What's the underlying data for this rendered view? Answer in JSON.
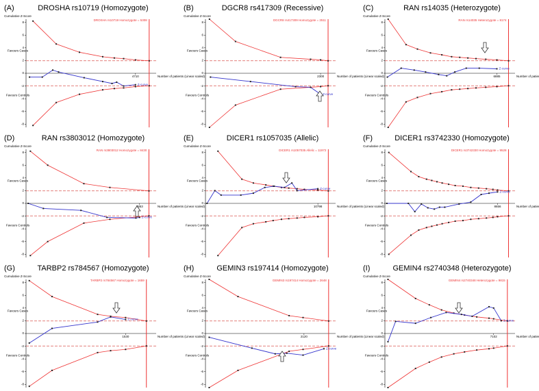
{
  "chart_data": [
    {
      "type": "line",
      "label": "(A)",
      "title": "DROSHA rs10719 (Homozygote)",
      "info": "DROSHA rs10719 Homozygote = 5308",
      "y_label": "Cumulative Z-Score",
      "favours_top": "Favours Cases",
      "favours_bottom": "Favours Controls",
      "x_label": "Number of patients (Linear scaled)",
      "xlim": [
        0,
        5600
      ],
      "xticks": [
        4710
      ],
      "ylim": [
        -8.5,
        8.5
      ],
      "yticks": [
        -8,
        -6,
        -4,
        -2,
        0,
        2,
        4,
        6,
        8
      ],
      "ris": 5300,
      "conventional": [
        1.96,
        -1.96
      ],
      "series": [
        {
          "name": "Z-curve",
          "color": "#3333cc",
          "x": [
            150,
            700,
            1150,
            1400,
            2500,
            3300,
            3700,
            3900,
            4200,
            4710
          ],
          "values": [
            -0.6,
            -0.6,
            0.5,
            0.2,
            -0.7,
            -1.3,
            -1.6,
            -1.4,
            -2.0,
            -1.8
          ]
        }
      ],
      "boundary_x": [
        300,
        1300,
        2300,
        3300,
        3800,
        4200,
        4710,
        5300
      ],
      "upper": [
        8.2,
        4.6,
        3.3,
        2.6,
        2.4,
        2.3,
        2.1,
        1.96
      ],
      "lower": [
        -8.2,
        -4.6,
        -3.3,
        -2.6,
        -2.4,
        -2.3,
        -2.1,
        -1.96
      ]
    },
    {
      "type": "line",
      "label": "(B)",
      "title": "DGCR8 rs417309 (Recessive)",
      "info": "DGCR8 rs417309 Homozygote = 2511",
      "y_label": "Cumulative Z-Score",
      "favours_top": "Favours Cases",
      "favours_bottom": "Favours Controls",
      "x_label": "Number of patients (Linear scaled)",
      "xlim": [
        0,
        2600
      ],
      "xticks": [
        2300
      ],
      "ylim": [
        -8.5,
        8.5
      ],
      "yticks": [
        -8,
        -6,
        -4,
        -2,
        0,
        2,
        4,
        6,
        8
      ],
      "ris": 2450,
      "conventional": [
        1.96,
        -1.96
      ],
      "series": [
        {
          "name": "Z-curve",
          "color": "#3333cc",
          "x": [
            100,
            900,
            1800,
            2100,
            2300
          ],
          "values": [
            -0.6,
            -1.3,
            -2.1,
            -2.2,
            -3.3
          ]
        }
      ],
      "boundary_x": [
        80,
        600,
        1500,
        2100,
        2300,
        2450
      ],
      "upper": [
        8.5,
        5.0,
        2.5,
        2.2,
        2.1,
        1.96
      ],
      "lower": [
        -8.5,
        -5.0,
        -2.5,
        -2.2,
        -2.1,
        -1.96
      ]
    },
    {
      "type": "line",
      "label": "(C)",
      "title": "RAN rs14035 (Heterozygote)",
      "info": "RAN rs14035 Heterozygote = 8174",
      "y_label": "Cumulative Z-Score",
      "favours_top": "Favours Cases",
      "favours_bottom": "Favours Controls",
      "x_label": "Number of patients (Linear scaled)",
      "xlim": [
        0,
        8000
      ],
      "xticks": [
        6885
      ],
      "ylim": [
        -8.5,
        8.5
      ],
      "yticks": [
        -8,
        -6,
        -4,
        -2,
        0,
        2,
        4,
        6,
        8
      ],
      "ris": 7600,
      "conventional": [
        1.96,
        -1.96
      ],
      "series": [
        {
          "name": "Z-curve",
          "color": "#3333cc",
          "x": [
            150,
            1000,
            1800,
            2500,
            3300,
            3800,
            4300,
            5000,
            5800,
            6885
          ],
          "values": [
            -0.6,
            0.8,
            0.5,
            0.2,
            -0.2,
            -0.4,
            0.2,
            0.8,
            0.8,
            0.7
          ]
        }
      ],
      "boundary_x": [
        200,
        1300,
        2000,
        2800,
        3500,
        4100,
        4600,
        5100,
        5600,
        6200,
        6885,
        7600
      ],
      "upper": [
        8.5,
        4.5,
        3.8,
        3.2,
        2.9,
        2.6,
        2.5,
        2.4,
        2.3,
        2.2,
        2.1,
        1.96
      ],
      "lower": [
        -8.5,
        -4.5,
        -3.8,
        -3.2,
        -2.9,
        -2.6,
        -2.5,
        -2.4,
        -2.3,
        -2.2,
        -2.1,
        -1.96
      ]
    },
    {
      "type": "line",
      "label": "(D)",
      "title": "RAN rs3803012 (Homozygote)",
      "info": "RAN rs3803012 Homozygote = 8430",
      "y_label": "Cumulative Z-Score",
      "favours_top": "Favours Cases",
      "favours_bottom": "Favours Controls",
      "x_label": "Number of patients (Linear scaled)",
      "xlim": [
        0,
        9000
      ],
      "xticks": [
        7853
      ],
      "ylim": [
        -8.5,
        8.5
      ],
      "yticks": [
        -8,
        -6,
        -4,
        -2,
        0,
        2,
        4,
        6,
        8
      ],
      "ris": 8500,
      "conventional": [
        1.96,
        -1.96
      ],
      "series": [
        {
          "name": "Z-curve",
          "color": "#3333cc",
          "x": [
            150,
            1200,
            3800,
            5600,
            7600,
            7853
          ],
          "values": [
            0,
            -0.8,
            -1.1,
            -2.2,
            -2.3,
            -2.2
          ]
        }
      ],
      "boundary_x": [
        300,
        1500,
        4000,
        5800,
        8500
      ],
      "upper": [
        8.2,
        6.0,
        3.1,
        2.5,
        1.96
      ],
      "lower": [
        -8.2,
        -6.0,
        -3.1,
        -2.5,
        -1.96
      ]
    },
    {
      "type": "line",
      "label": "(E)",
      "title": "DICER1 rs1057035 (Allelic)",
      "info": "DICER1 rs1057035 Allelic = 11972",
      "y_label": "Cumulative Z-Score",
      "favours_top": "Favours Cases",
      "favours_bottom": "Favours Controls",
      "x_label": "Number of patients (Linear scaled)",
      "xlim": [
        0,
        12500
      ],
      "xticks": [
        10798
      ],
      "ylim": [
        -8.5,
        8.5
      ],
      "yticks": [
        -8,
        -6,
        -4,
        -2,
        0,
        2,
        4,
        6,
        8
      ],
      "ris": 11800,
      "conventional": [
        1.96,
        -1.96
      ],
      "series": [
        {
          "name": "Z-curve",
          "color": "#3333cc",
          "x": [
            150,
            900,
            1500,
            3400,
            4600,
            5700,
            6600,
            7600,
            8300,
            8800,
            10798
          ],
          "values": [
            0,
            2.0,
            1.3,
            1.3,
            1.6,
            2.5,
            2.7,
            2.5,
            3.2,
            2.0,
            2.3
          ]
        }
      ],
      "boundary_x": [
        1200,
        3500,
        4600,
        5800,
        6500,
        7300,
        8000,
        8800,
        9500,
        10798,
        11800
      ],
      "upper": [
        8.2,
        3.8,
        3.2,
        2.9,
        2.7,
        2.5,
        2.4,
        2.3,
        2.2,
        2.1,
        1.96
      ],
      "lower": [
        -8.2,
        -3.8,
        -3.2,
        -2.9,
        -2.7,
        -2.5,
        -2.4,
        -2.3,
        -2.2,
        -2.1,
        -1.96
      ]
    },
    {
      "type": "line",
      "label": "(F)",
      "title": "DICER1 rs3742330 (Homozygote)",
      "info": "DICER1 rs3742330 Homozygote = 9528",
      "y_label": "Cumulative Z-Score",
      "favours_top": "Favours Cases",
      "favours_bottom": "Favours Controls",
      "x_label": "Number of patients (Linear scaled)",
      "xlim": [
        0,
        10000
      ],
      "xticks": [
        8656
      ],
      "ylim": [
        -8.5,
        8.5
      ],
      "yticks": [
        -8,
        -6,
        -4,
        -2,
        0,
        2,
        4,
        6,
        8
      ],
      "ris": 9500,
      "conventional": [
        1.96,
        -1.96
      ],
      "series": [
        {
          "name": "Z-curve",
          "color": "#3333cc",
          "x": [
            150,
            1800,
            2300,
            2800,
            3300,
            3800,
            4200,
            4600,
            5700,
            6600,
            7400,
            8000,
            8656
          ],
          "values": [
            0,
            0,
            -1.3,
            -0.1,
            -0.7,
            -0.9,
            -0.6,
            -0.6,
            -0.1,
            0.2,
            1.4,
            1.6,
            1.8
          ]
        }
      ],
      "boundary_x": [
        300,
        2000,
        2600,
        3200,
        3600,
        4000,
        4400,
        4900,
        5400,
        6000,
        6600,
        7200,
        7800,
        8300,
        8656,
        9500
      ],
      "upper": [
        8.0,
        5.0,
        4.2,
        3.8,
        3.6,
        3.4,
        3.2,
        3.0,
        2.8,
        2.7,
        2.5,
        2.4,
        2.3,
        2.2,
        2.1,
        1.96
      ],
      "lower": [
        -8.0,
        -5.0,
        -4.2,
        -3.8,
        -3.6,
        -3.4,
        -3.2,
        -3.0,
        -2.8,
        -2.7,
        -2.5,
        -2.4,
        -2.3,
        -2.2,
        -2.1,
        -1.96
      ]
    },
    {
      "type": "line",
      "label": "(G)",
      "title": "TARBP2 rs784567 (Homozygote)",
      "info": "TARBP2 rs784567 Homozygote = 1659",
      "y_label": "Cumulative Z-Score",
      "favours_top": "Favours Cases",
      "favours_bottom": "Favours Controls",
      "x_label": "Number of patients (Linear scaled)",
      "xlim": [
        0,
        2000
      ],
      "xticks": [
        1530
      ],
      "ylim": [
        -8.5,
        8.5
      ],
      "yticks": [
        -8,
        -6,
        -4,
        -2,
        0,
        2,
        4,
        6,
        8
      ],
      "ris": 1850,
      "conventional": [
        1.96,
        -1.96
      ],
      "series": [
        {
          "name": "Z-curve",
          "color": "#3333cc",
          "x": [
            50,
            400,
            1100,
            1300,
            1530
          ],
          "values": [
            -1.5,
            0.8,
            1.8,
            2.6,
            2.2
          ]
        }
      ],
      "boundary_x": [
        50,
        400,
        1100,
        1300,
        1530,
        1850
      ],
      "upper": [
        8.3,
        5.8,
        3.0,
        2.7,
        2.5,
        1.96
      ],
      "lower": [
        -8.3,
        -5.8,
        -3.0,
        -2.7,
        -2.5,
        -1.96
      ]
    },
    {
      "type": "line",
      "label": "(H)",
      "title": "GEMIN3 rs197414 (Homozygote)",
      "info": "GEMIN3 rs197414 Homozygote = 2648",
      "y_label": "Cumulative Z-Score",
      "favours_top": "Favours Cases",
      "favours_bottom": "Favours Controls",
      "x_label": "Number of patients (Linear scaled)",
      "xlim": [
        0,
        2800
      ],
      "xticks": [
        2120
      ],
      "ylim": [
        -8.5,
        8.5
      ],
      "yticks": [
        -8,
        -6,
        -4,
        -2,
        0,
        2,
        4,
        6,
        8
      ],
      "ris": 2650,
      "conventional": [
        1.96,
        -1.96
      ],
      "series": [
        {
          "name": "Z-curve",
          "color": "#3333cc",
          "x": [
            80,
            1000,
            1500,
            1750,
            2100,
            2550
          ],
          "values": [
            -0.6,
            -2.3,
            -3.2,
            -3.1,
            -3.4,
            -2.4
          ]
        }
      ],
      "boundary_x": [
        80,
        700,
        1800,
        2100,
        2650
      ],
      "upper": [
        8.5,
        5.8,
        2.8,
        2.5,
        1.96
      ],
      "lower": [
        -8.5,
        -5.8,
        -2.8,
        -2.5,
        -1.96
      ]
    },
    {
      "type": "line",
      "label": "(I)",
      "title": "GEMIN4 rs2740348 (Heterozygote)",
      "info": "GEMIN4 rs2740348 Heterozygote = 9815",
      "y_label": "Cumulative Z-Score",
      "favours_top": "Favours Cases",
      "favours_bottom": "Favours Controls",
      "x_label": "Number of patients (Linear scaled)",
      "xlim": [
        0,
        8500
      ],
      "xticks": [
        7102
      ],
      "ylim": [
        -8.5,
        8.5
      ],
      "yticks": [
        -8,
        -6,
        -4,
        -2,
        0,
        2,
        4,
        6,
        8
      ],
      "ris": 8000,
      "conventional": [
        1.96,
        -1.96
      ],
      "series": [
        {
          "name": "Z-curve",
          "color": "#3333cc",
          "x": [
            200,
            700,
            2000,
            3000,
            4000,
            5000,
            5700,
            6800,
            7102,
            7600
          ],
          "values": [
            -1.3,
            1.9,
            1.6,
            2.5,
            3.3,
            3.0,
            2.7,
            4.2,
            4.0,
            2.0
          ]
        }
      ],
      "boundary_x": [
        200,
        2000,
        2900,
        3700,
        4500,
        5200,
        6000,
        6800,
        7102,
        8000
      ],
      "upper": [
        8.5,
        5.5,
        4.5,
        3.7,
        3.2,
        2.9,
        2.6,
        2.4,
        2.3,
        1.96
      ],
      "lower": [
        -8.5,
        -5.5,
        -4.5,
        -3.7,
        -3.2,
        -2.9,
        -2.6,
        -2.4,
        -2.3,
        -1.96
      ]
    }
  ]
}
